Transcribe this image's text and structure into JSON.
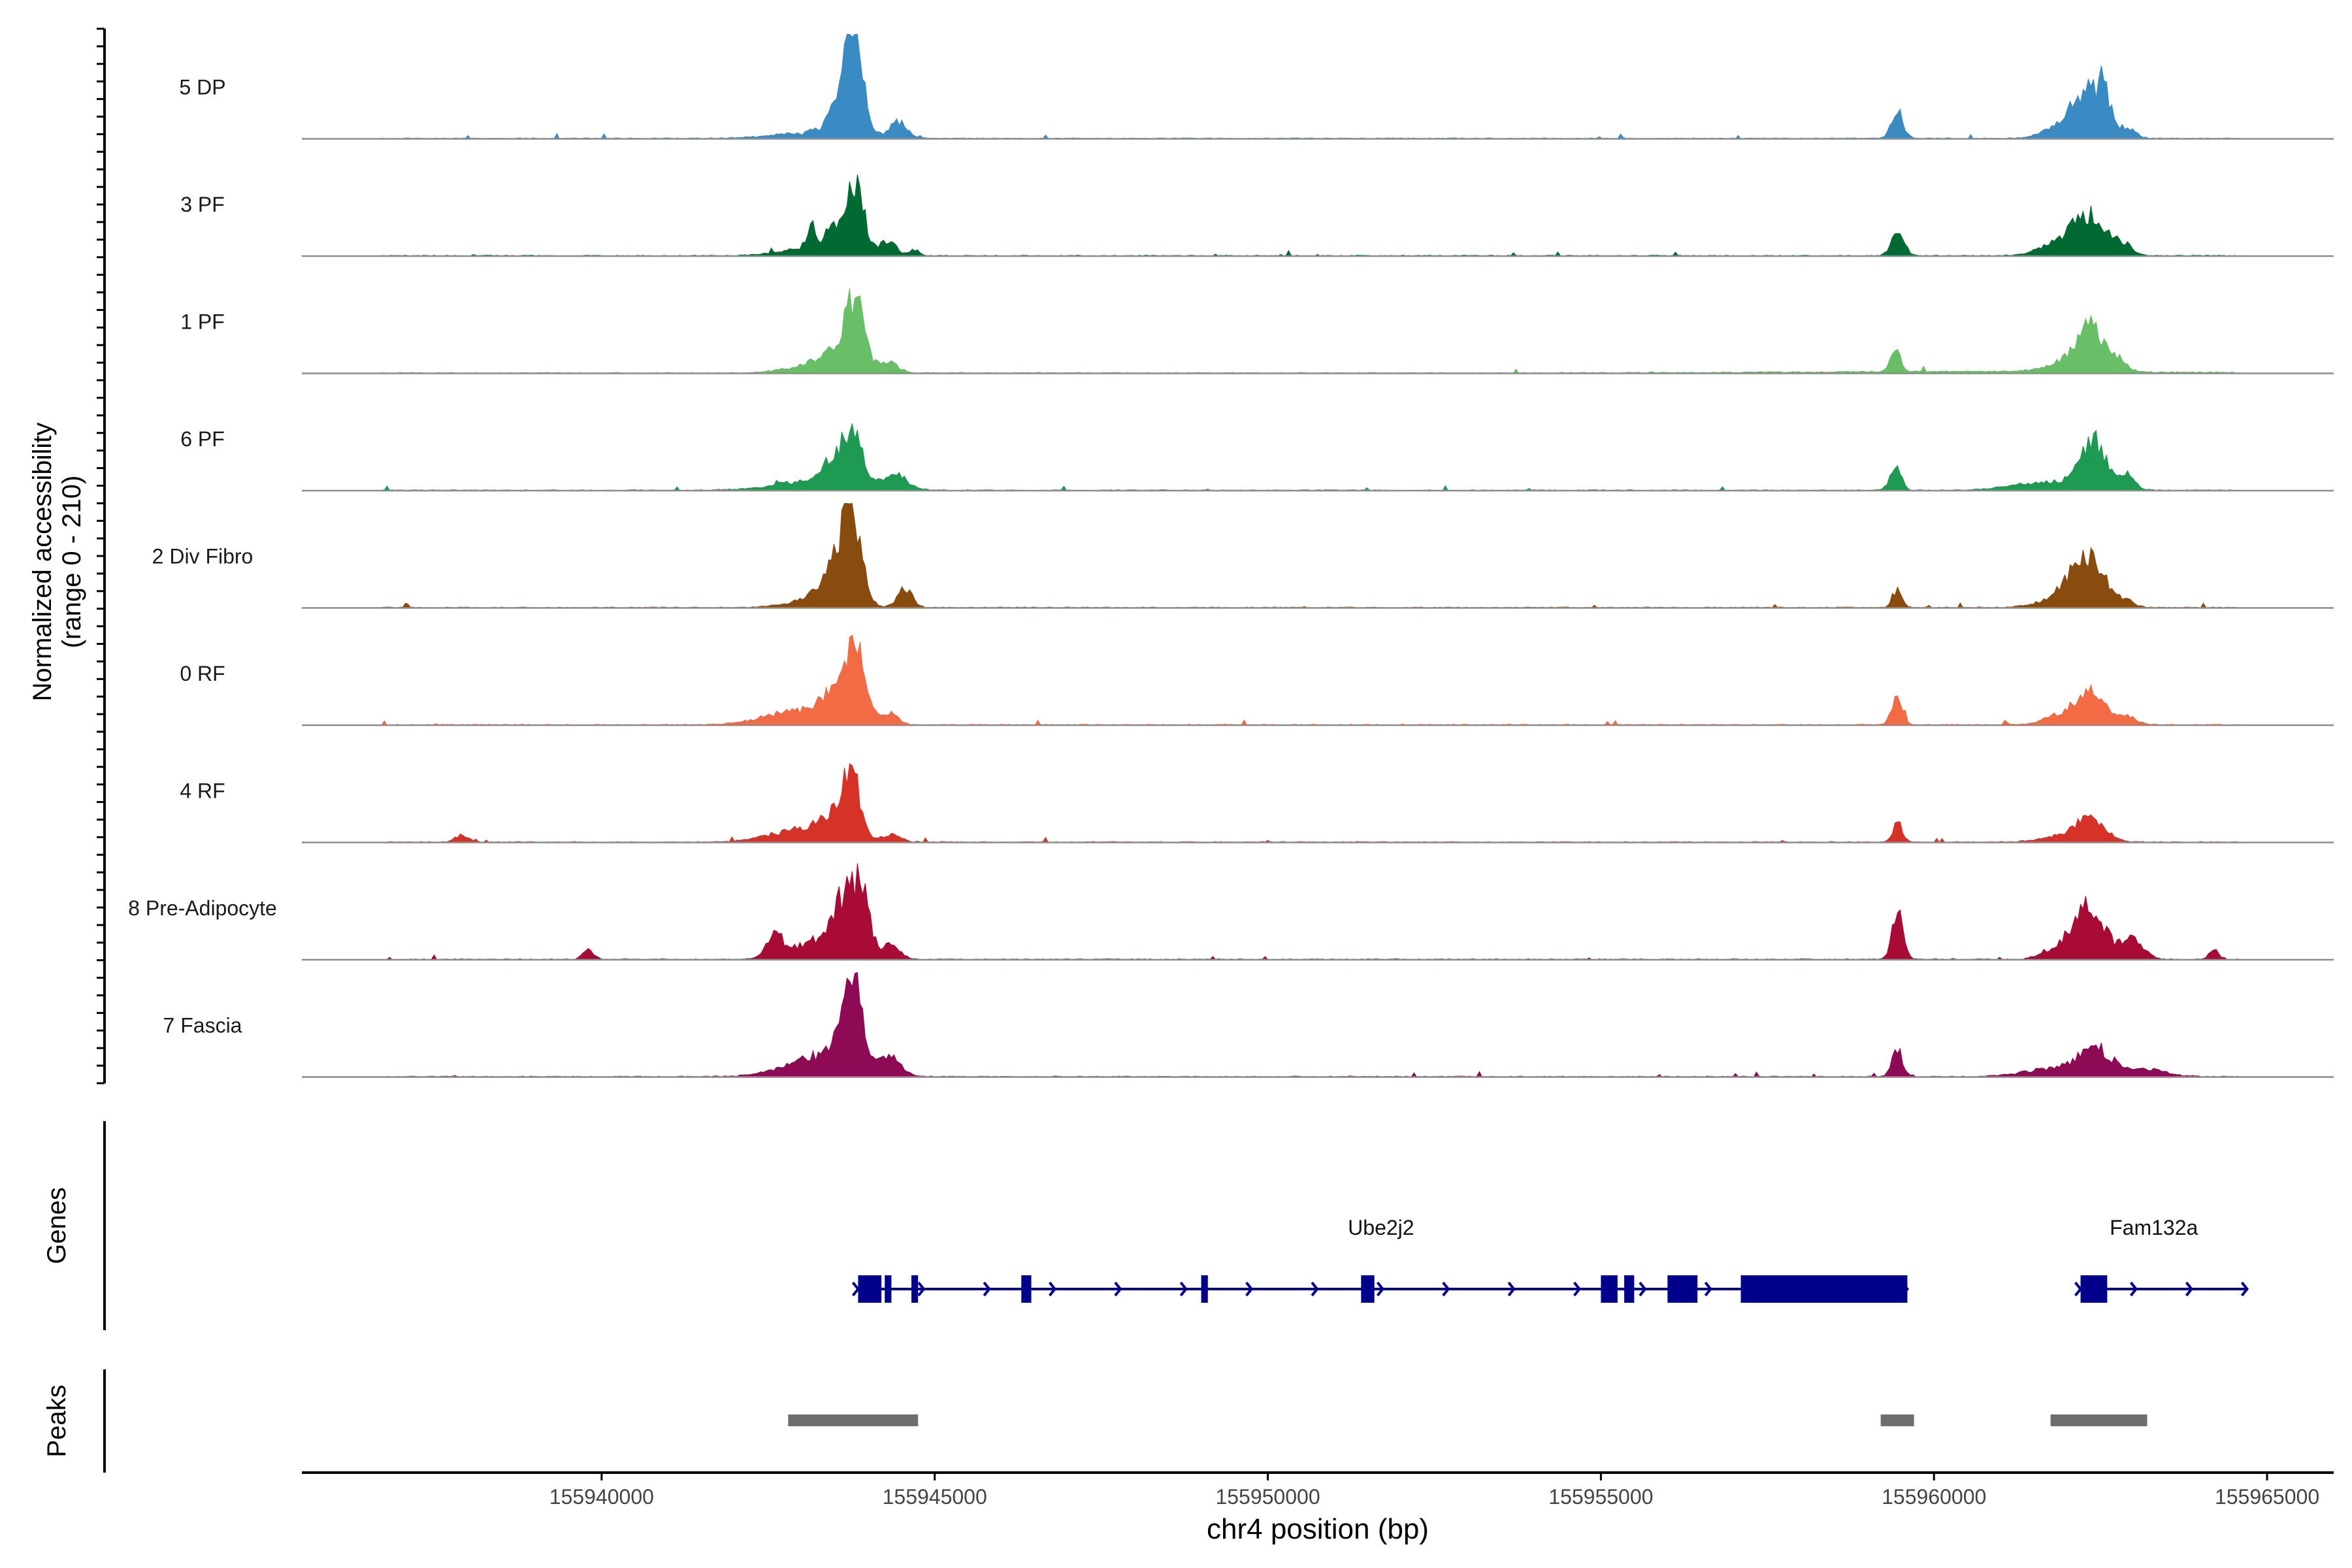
{
  "chart_data": {
    "type": "area",
    "title": "",
    "ylabel": "Normalized accessibility",
    "ylabel_sub": "(range 0 - 210)",
    "ylim": [
      0,
      210
    ],
    "xlabel": "chr4 position (bp)",
    "xlim": [
      155935500,
      155966000
    ],
    "xticks": [
      155940000,
      155945000,
      155950000,
      155955000,
      155960000,
      155965000
    ],
    "xtick_labels": [
      "155940000",
      "155945000",
      "155950000",
      "155955000",
      "155960000",
      "155965000"
    ],
    "baseline_color": "#8c8c8c",
    "region": {
      "start": 155936700,
      "end": 155964600,
      "noise": 2
    },
    "series": [
      {
        "name": "5 DP",
        "color": "#3a8bc4",
        "peaks": [
          [
            155943250,
            600,
            12
          ],
          [
            155943780,
            140,
            195
          ],
          [
            155943600,
            180,
            55
          ],
          [
            155944450,
            120,
            35
          ],
          [
            155959450,
            90,
            55
          ],
          [
            155962300,
            220,
            90
          ],
          [
            155962550,
            100,
            70
          ],
          [
            155961900,
            250,
            25
          ],
          [
            155962900,
            130,
            20
          ]
        ]
      },
      {
        "name": "3 PF",
        "color": "#006a33",
        "peaks": [
          [
            155943150,
            70,
            45
          ],
          [
            155943450,
            80,
            50
          ],
          [
            155943800,
            130,
            150
          ],
          [
            155943300,
            500,
            18
          ],
          [
            155944300,
            120,
            28
          ],
          [
            155944700,
            70,
            12
          ],
          [
            155959450,
            90,
            50
          ],
          [
            155962300,
            250,
            85
          ],
          [
            155961800,
            250,
            22
          ],
          [
            155962800,
            150,
            25
          ]
        ]
      },
      {
        "name": "1 PF",
        "color": "#68bf68",
        "peaks": [
          [
            155943200,
            400,
            18
          ],
          [
            155943800,
            140,
            140
          ],
          [
            155943500,
            200,
            35
          ],
          [
            155944300,
            150,
            22
          ],
          [
            155959420,
            70,
            50
          ],
          [
            155962350,
            220,
            90
          ],
          [
            155961900,
            300,
            15
          ],
          [
            155962800,
            120,
            18
          ],
          [
            155960500,
            2500,
            3
          ]
        ]
      },
      {
        "name": "6 PF",
        "color": "#1f9a52",
        "peaks": [
          [
            155943300,
            600,
            22
          ],
          [
            155943750,
            140,
            120
          ],
          [
            155943450,
            110,
            45
          ],
          [
            155944400,
            180,
            30
          ],
          [
            155959420,
            80,
            55
          ],
          [
            155962400,
            200,
            95
          ],
          [
            155961700,
            500,
            18
          ],
          [
            155962900,
            120,
            30
          ]
        ]
      },
      {
        "name": "2 Div Fibro",
        "color": "#8a4b0f",
        "peaks": [
          [
            155943300,
            400,
            22
          ],
          [
            155943750,
            140,
            190
          ],
          [
            155943500,
            180,
            60
          ],
          [
            155944550,
            110,
            40
          ],
          [
            155959450,
            70,
            40
          ],
          [
            155962300,
            250,
            110
          ],
          [
            155961800,
            300,
            15
          ],
          [
            155962900,
            120,
            12
          ]
        ]
      },
      {
        "name": "0 RF",
        "color": "#f26b45",
        "peaks": [
          [
            155943000,
            500,
            32
          ],
          [
            155943800,
            140,
            165
          ],
          [
            155943450,
            180,
            40
          ],
          [
            155944300,
            130,
            25
          ],
          [
            155959450,
            80,
            60
          ],
          [
            155962350,
            230,
            65
          ],
          [
            155961900,
            250,
            18
          ],
          [
            155962900,
            150,
            15
          ]
        ]
      },
      {
        "name": "4 RF",
        "color": "#d63228",
        "peaks": [
          [
            155943100,
            500,
            30
          ],
          [
            155943750,
            130,
            130
          ],
          [
            155943450,
            180,
            35
          ],
          [
            155944350,
            130,
            15
          ],
          [
            155937900,
            100,
            15
          ],
          [
            155959450,
            70,
            45
          ],
          [
            155962350,
            220,
            45
          ],
          [
            155961900,
            300,
            12
          ]
        ]
      },
      {
        "name": "8 Pre-Adipocyte",
        "color": "#a80b35",
        "peaks": [
          [
            155942600,
            120,
            40
          ],
          [
            155943250,
            400,
            40
          ],
          [
            155943850,
            140,
            165
          ],
          [
            155943550,
            110,
            75
          ],
          [
            155944350,
            130,
            30
          ],
          [
            155939800,
            80,
            20
          ],
          [
            155959450,
            80,
            110
          ],
          [
            155962300,
            250,
            115
          ],
          [
            155961700,
            150,
            15
          ],
          [
            155963000,
            150,
            40
          ],
          [
            155964200,
            80,
            18
          ]
        ]
      },
      {
        "name": "7 Fascia",
        "color": "#8e0a54",
        "peaks": [
          [
            155943300,
            500,
            45
          ],
          [
            155943750,
            160,
            175
          ],
          [
            155944350,
            150,
            35
          ],
          [
            155959450,
            80,
            55
          ],
          [
            155962400,
            250,
            60
          ],
          [
            155961700,
            400,
            15
          ],
          [
            155963200,
            300,
            15
          ]
        ]
      }
    ],
    "genes": [
      {
        "name": "Ube2j2",
        "start": 155943850,
        "end": 155959600,
        "strand": "+",
        "color": "#00008b",
        "exons": [
          [
            155943850,
            155944200
          ],
          [
            155944250,
            155944350
          ],
          [
            155944650,
            155944750
          ],
          [
            155946300,
            155946450
          ],
          [
            155949000,
            155949100
          ],
          [
            155951400,
            155951600
          ],
          [
            155955000,
            155955250
          ],
          [
            155955350,
            155955500
          ],
          [
            155956000,
            155956450
          ],
          [
            155957100,
            155959600
          ]
        ]
      },
      {
        "name": "Fam132a",
        "start": 155962200,
        "end": 155964700,
        "strand": "+",
        "color": "#00008b",
        "exons": [
          [
            155962200,
            155962600
          ]
        ]
      }
    ],
    "peaks_track": {
      "color": "#6e6e6e",
      "regions": [
        [
          155942800,
          155944750
        ],
        [
          155959200,
          155959700
        ],
        [
          155961750,
          155963200
        ]
      ]
    },
    "panel_labels": {
      "genes": "Genes",
      "peaks": "Peaks"
    }
  }
}
